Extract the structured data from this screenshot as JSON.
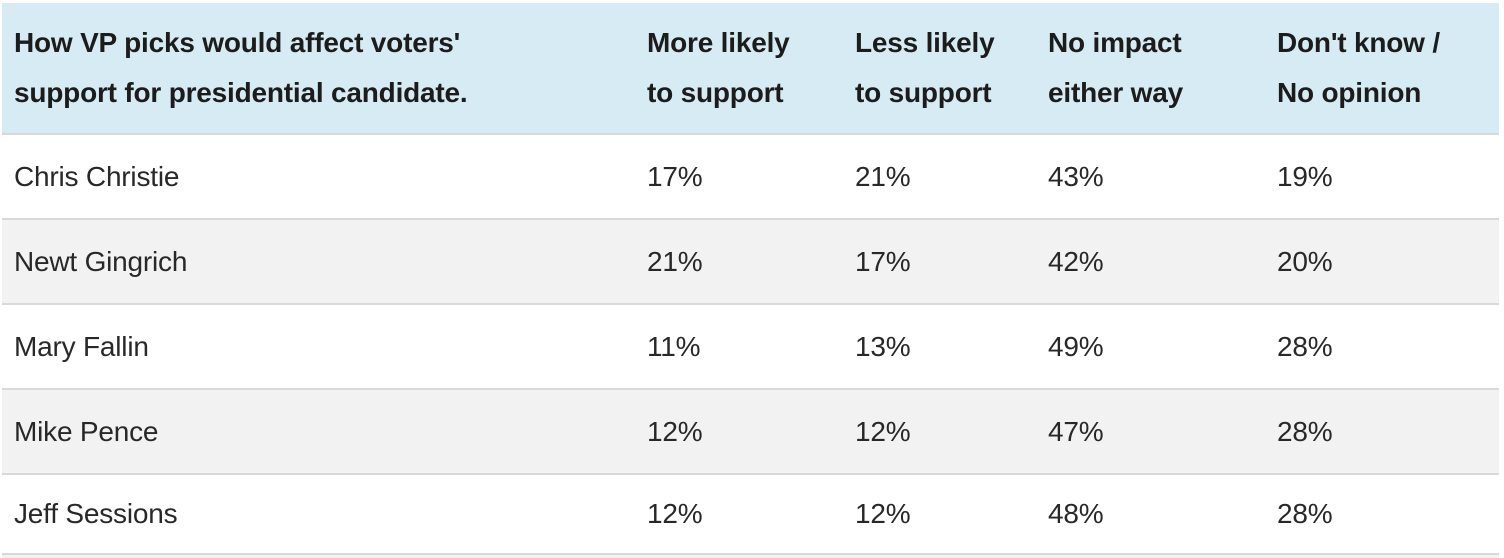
{
  "table": {
    "header": {
      "question": {
        "line1": "How VP picks would affect voters'",
        "line2": "support for presidential candidate."
      },
      "columns": [
        {
          "line1": "More likely",
          "line2": "to support"
        },
        {
          "line1": "Less likely",
          "line2": "to support"
        },
        {
          "line1": "No impact",
          "line2": "either way"
        },
        {
          "line1": "Don't know /",
          "line2": "No opinion"
        }
      ]
    },
    "rows": [
      {
        "name": "Chris Christie",
        "values": [
          "17%",
          "21%",
          "43%",
          "19%"
        ]
      },
      {
        "name": "Newt Gingrich",
        "values": [
          "21%",
          "17%",
          "42%",
          "20%"
        ]
      },
      {
        "name": "Mary Fallin",
        "values": [
          "11%",
          "13%",
          "49%",
          "28%"
        ]
      },
      {
        "name": "Mike Pence",
        "values": [
          "12%",
          "12%",
          "47%",
          "28%"
        ]
      },
      {
        "name": "Jeff Sessions",
        "values": [
          "12%",
          "12%",
          "48%",
          "28%"
        ]
      }
    ]
  },
  "colors": {
    "header_bg": "#d6ebf4",
    "row_bg": "#ffffff",
    "row_alt_bg": "#f2f2f2",
    "divider": "#d9d9d9",
    "header_text": "#1c1c1c",
    "body_text": "#282828"
  },
  "chart_data": {
    "type": "table",
    "title": "How VP picks would affect voters' support for presidential candidate.",
    "columns": [
      "More likely to support",
      "Less likely to support",
      "No impact either way",
      "Don't know / No opinion"
    ],
    "unit": "%",
    "rows": [
      {
        "candidate": "Chris Christie",
        "values": [
          17,
          21,
          43,
          19
        ]
      },
      {
        "candidate": "Newt Gingrich",
        "values": [
          21,
          17,
          42,
          20
        ]
      },
      {
        "candidate": "Mary Fallin",
        "values": [
          11,
          13,
          49,
          28
        ]
      },
      {
        "candidate": "Mike Pence",
        "values": [
          12,
          12,
          47,
          28
        ]
      },
      {
        "candidate": "Jeff Sessions",
        "values": [
          12,
          12,
          48,
          28
        ]
      }
    ],
    "layout": {
      "header_background": "#d6ebf4",
      "alternating_rows": true
    }
  }
}
